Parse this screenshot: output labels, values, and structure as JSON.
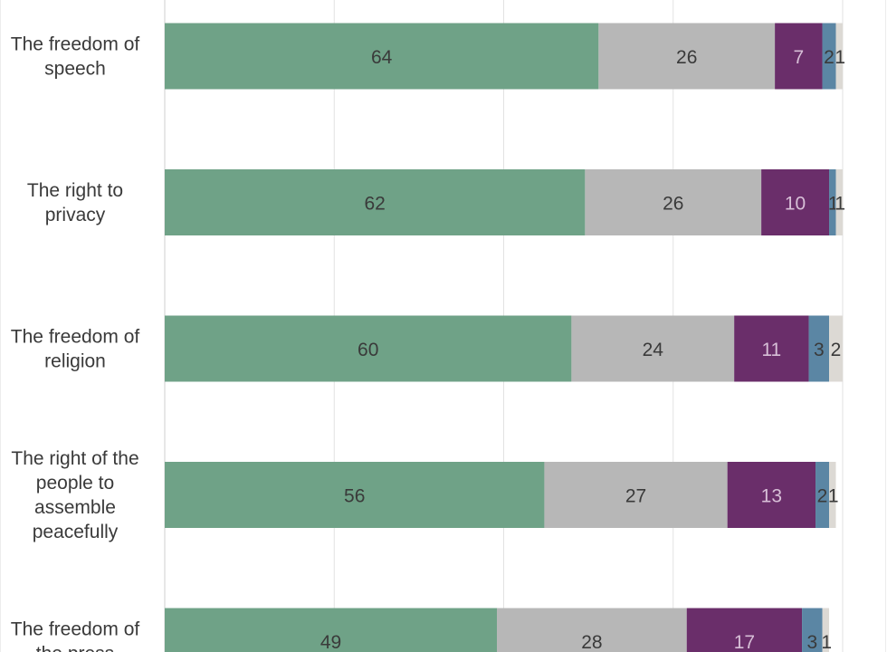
{
  "chart_data": {
    "type": "bar",
    "orientation": "horizontal",
    "stacked": true,
    "xlim": [
      0,
      100
    ],
    "grid": true,
    "categories": [
      "The freedom of speech",
      "The right to privacy",
      "The freedom of religion",
      "The right of the people to assemble peacefully",
      "The freedom of the press"
    ],
    "category_lines": [
      [
        "The freedom of",
        "speech"
      ],
      [
        "The right to",
        "privacy"
      ],
      [
        "The freedom of",
        "religion"
      ],
      [
        "The right of the",
        "people to",
        "assemble",
        "peacefully"
      ],
      [
        "The freedom of",
        "the press"
      ]
    ],
    "series": [
      {
        "color": "#6fa287",
        "label_color": "#3a3a3a",
        "values": [
          64,
          62,
          60,
          56,
          49
        ]
      },
      {
        "color": "#b7b7b7",
        "label_color": "#3a3a3a",
        "values": [
          26,
          26,
          24,
          27,
          28
        ]
      },
      {
        "color": "#6a2e6a",
        "label_color": "#d7bfd7",
        "values": [
          7,
          10,
          11,
          13,
          17
        ]
      },
      {
        "color": "#5b86a4",
        "label_color": "#3a3a3a",
        "values": [
          2,
          1,
          3,
          2,
          3
        ]
      },
      {
        "color": "#dcd9d4",
        "label_color": "#3a3a3a",
        "values": [
          1,
          1,
          2,
          1,
          1
        ]
      }
    ]
  },
  "colors": {
    "grid": "#e2e2e2",
    "axis": "#cfcfcf",
    "text": "#3a3a3a"
  }
}
